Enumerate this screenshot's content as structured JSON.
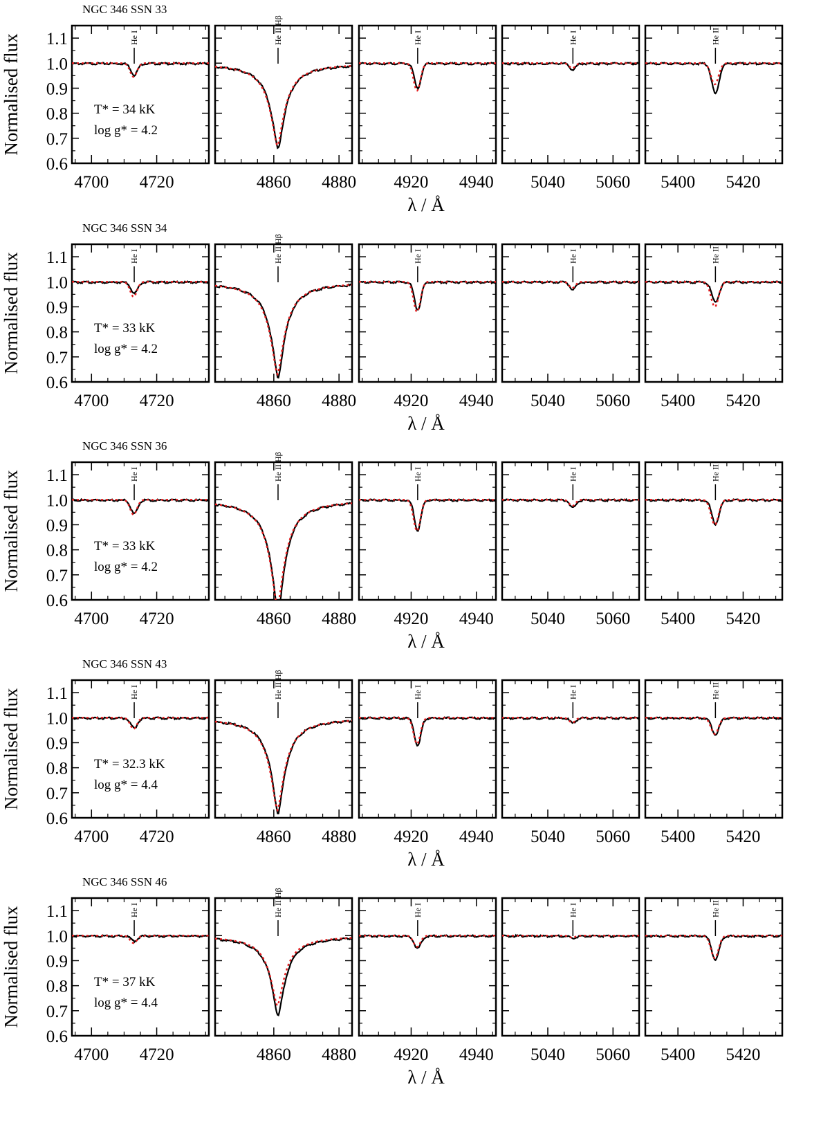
{
  "chart_data": {
    "type": "line",
    "ylabel": "Normalised flux",
    "xlabel": "λ / Å",
    "ylim": [
      0.6,
      1.15
    ],
    "yticks": [
      0.6,
      0.7,
      0.8,
      0.9,
      1.0,
      1.1
    ],
    "legend": "none",
    "grid": false,
    "colors": {
      "observed": "#000000",
      "model": "#e41a1c"
    },
    "panels": [
      {
        "xlim": [
          4694,
          4736
        ],
        "xticks": [
          4700,
          4720
        ],
        "line_center": 4713.1,
        "line_id": "He I"
      },
      {
        "xlim": [
          4842,
          4884
        ],
        "xticks": [
          4860,
          4880
        ],
        "line_center": 4861.3,
        "line_id": "He II Hβ"
      },
      {
        "xlim": [
          4904,
          4946
        ],
        "xticks": [
          4920,
          4940
        ],
        "line_center": 4922.0,
        "line_id": "He I"
      },
      {
        "xlim": [
          5026,
          5068
        ],
        "xticks": [
          5040,
          5060
        ],
        "line_center": 5047.7,
        "line_id": "He I"
      },
      {
        "xlim": [
          5390,
          5432
        ],
        "xticks": [
          5400,
          5420
        ],
        "line_center": 5411.5,
        "line_id": "He II"
      }
    ],
    "rows": [
      {
        "title": "NGC 346 SSN 33",
        "teff": "T* = 34 kK",
        "logg": "log g* = 4.2",
        "obs_depth": [
          0.045,
          0.34,
          0.1,
          0.025,
          0.12
        ],
        "model_depth": [
          0.055,
          0.33,
          0.11,
          0.02,
          0.085
        ]
      },
      {
        "title": "NGC 346 SSN 34",
        "teff": "T* = 33 kK",
        "logg": "log g* = 4.2",
        "obs_depth": [
          0.045,
          0.38,
          0.11,
          0.03,
          0.08
        ],
        "model_depth": [
          0.06,
          0.37,
          0.12,
          0.025,
          0.1
        ]
      },
      {
        "title": "NGC 346 SSN 36",
        "teff": "T* = 33 kK",
        "logg": "log g* = 4.2",
        "obs_depth": [
          0.055,
          0.45,
          0.12,
          0.03,
          0.095
        ],
        "model_depth": [
          0.06,
          0.43,
          0.125,
          0.025,
          0.1
        ]
      },
      {
        "title": "NGC 346 SSN 43",
        "teff": "T* = 32.3 kK",
        "logg": "log g* = 4.4",
        "obs_depth": [
          0.04,
          0.38,
          0.11,
          0.02,
          0.065
        ],
        "model_depth": [
          0.045,
          0.37,
          0.105,
          0.02,
          0.065
        ]
      },
      {
        "title": "NGC 346 SSN 46",
        "teff": "T* = 37 kK",
        "logg": "log g* = 4.4",
        "obs_depth": [
          0.02,
          0.32,
          0.05,
          0.008,
          0.095
        ],
        "model_depth": [
          0.03,
          0.28,
          0.045,
          0.008,
          0.09
        ]
      }
    ]
  }
}
